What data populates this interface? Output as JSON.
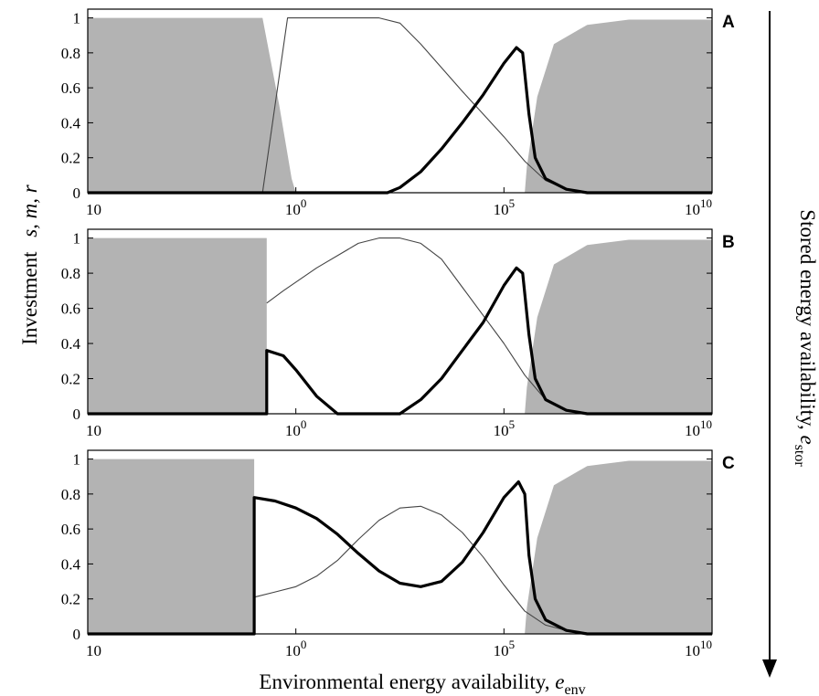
{
  "figure": {
    "ylabel_main": "Investment",
    "ylabel_vars": "s, m, r",
    "xlabel_main": "Environmental energy availability, ",
    "xlabel_var": "e",
    "xlabel_sub": "env",
    "right_label_main": "Stored energy availability, ",
    "right_label_var": "e",
    "right_label_sub": "stor"
  },
  "chart_data": [
    {
      "panel": "A",
      "type": "area",
      "x_scale": "log",
      "x_ticks": [
        "10",
        "10^0",
        "10^5",
        "10^10"
      ],
      "x_tick_values": [
        -5,
        0,
        5,
        10
      ],
      "y_ticks": [
        "0",
        "0.2",
        "0.4",
        "0.6",
        "0.8",
        "1"
      ],
      "ylim": [
        0,
        1.05
      ],
      "colors": {
        "fill": "#b3b3b3",
        "thin": "#444444",
        "thick": "#000000"
      },
      "series": [
        {
          "style": "filled",
          "points": [
            [
              -5,
              1
            ],
            [
              -0.8,
              1
            ],
            [
              -0.4,
              0.5
            ],
            [
              -0.1,
              0.08
            ],
            [
              0,
              0
            ],
            [
              5.5,
              0
            ],
            [
              5.55,
              0.15
            ],
            [
              5.8,
              0.55
            ],
            [
              6.2,
              0.85
            ],
            [
              7,
              0.96
            ],
            [
              8,
              0.99
            ],
            [
              10,
              0.99
            ]
          ]
        },
        {
          "style": "thin",
          "points": [
            [
              -0.8,
              0
            ],
            [
              -0.5,
              0.5
            ],
            [
              -0.2,
              1
            ],
            [
              2,
              1
            ],
            [
              2.5,
              0.97
            ],
            [
              3,
              0.85
            ],
            [
              4,
              0.58
            ],
            [
              4.5,
              0.45
            ],
            [
              5,
              0.32
            ],
            [
              5.5,
              0.18
            ],
            [
              6,
              0.07
            ],
            [
              6.5,
              0.02
            ],
            [
              7,
              0.005
            ],
            [
              10,
              0.005
            ]
          ]
        },
        {
          "style": "thick",
          "points": [
            [
              -5,
              0
            ],
            [
              2.2,
              0
            ],
            [
              2.5,
              0.03
            ],
            [
              3,
              0.12
            ],
            [
              3.5,
              0.25
            ],
            [
              4,
              0.4
            ],
            [
              4.5,
              0.56
            ],
            [
              5,
              0.74
            ],
            [
              5.3,
              0.83
            ],
            [
              5.45,
              0.8
            ],
            [
              5.6,
              0.45
            ],
            [
              5.75,
              0.2
            ],
            [
              6,
              0.08
            ],
            [
              6.5,
              0.02
            ],
            [
              7,
              0
            ],
            [
              10,
              0
            ]
          ]
        }
      ]
    },
    {
      "panel": "B",
      "type": "area",
      "x_scale": "log",
      "x_ticks": [
        "10",
        "10^0",
        "10^5",
        "10^10"
      ],
      "x_tick_values": [
        -5,
        0,
        5,
        10
      ],
      "y_ticks": [
        "0",
        "0.2",
        "0.4",
        "0.6",
        "0.8",
        "1"
      ],
      "ylim": [
        0,
        1.05
      ],
      "colors": {
        "fill": "#b3b3b3",
        "thin": "#444444",
        "thick": "#000000"
      },
      "series": [
        {
          "style": "filled",
          "points": [
            [
              -5,
              1
            ],
            [
              -0.7,
              1
            ],
            [
              -0.7,
              0
            ],
            [
              5.5,
              0
            ],
            [
              5.55,
              0.15
            ],
            [
              5.8,
              0.55
            ],
            [
              6.2,
              0.85
            ],
            [
              7,
              0.96
            ],
            [
              8,
              0.99
            ],
            [
              10,
              0.99
            ]
          ]
        },
        {
          "style": "thin",
          "points": [
            [
              -0.7,
              0.63
            ],
            [
              -0.3,
              0.7
            ],
            [
              0.5,
              0.83
            ],
            [
              1.5,
              0.97
            ],
            [
              2,
              1
            ],
            [
              2.5,
              1
            ],
            [
              3,
              0.97
            ],
            [
              3.5,
              0.88
            ],
            [
              4,
              0.72
            ],
            [
              4.5,
              0.56
            ],
            [
              5,
              0.4
            ],
            [
              5.5,
              0.22
            ],
            [
              6,
              0.08
            ],
            [
              6.5,
              0.02
            ],
            [
              7,
              0.005
            ],
            [
              10,
              0.005
            ]
          ]
        },
        {
          "style": "thick",
          "points": [
            [
              -5,
              0
            ],
            [
              -0.7,
              0
            ],
            [
              -0.7,
              0.36
            ],
            [
              -0.3,
              0.33
            ],
            [
              0,
              0.25
            ],
            [
              0.5,
              0.1
            ],
            [
              1,
              0
            ],
            [
              2.5,
              0
            ],
            [
              3,
              0.08
            ],
            [
              3.5,
              0.2
            ],
            [
              4,
              0.36
            ],
            [
              4.5,
              0.52
            ],
            [
              5,
              0.73
            ],
            [
              5.3,
              0.83
            ],
            [
              5.45,
              0.8
            ],
            [
              5.6,
              0.45
            ],
            [
              5.75,
              0.2
            ],
            [
              6,
              0.08
            ],
            [
              6.5,
              0.02
            ],
            [
              7,
              0
            ],
            [
              10,
              0
            ]
          ]
        }
      ]
    },
    {
      "panel": "C",
      "type": "area",
      "x_scale": "log",
      "x_ticks": [
        "10",
        "10^0",
        "10^5",
        "10^10"
      ],
      "x_tick_values": [
        -5,
        0,
        5,
        10
      ],
      "y_ticks": [
        "0",
        "0.2",
        "0.4",
        "0.6",
        "0.8",
        "1"
      ],
      "ylim": [
        0,
        1.05
      ],
      "colors": {
        "fill": "#b3b3b3",
        "thin": "#444444",
        "thick": "#000000"
      },
      "series": [
        {
          "style": "filled",
          "points": [
            [
              -5,
              1
            ],
            [
              -1,
              1
            ],
            [
              -1,
              0
            ],
            [
              5.5,
              0
            ],
            [
              5.55,
              0.15
            ],
            [
              5.8,
              0.55
            ],
            [
              6.2,
              0.85
            ],
            [
              7,
              0.96
            ],
            [
              8,
              0.99
            ],
            [
              10,
              0.99
            ]
          ]
        },
        {
          "style": "thin",
          "points": [
            [
              -1,
              0.21
            ],
            [
              -0.5,
              0.24
            ],
            [
              0,
              0.27
            ],
            [
              0.5,
              0.33
            ],
            [
              1,
              0.42
            ],
            [
              1.5,
              0.54
            ],
            [
              2,
              0.65
            ],
            [
              2.5,
              0.72
            ],
            [
              3,
              0.73
            ],
            [
              3.5,
              0.68
            ],
            [
              4,
              0.58
            ],
            [
              4.5,
              0.44
            ],
            [
              5,
              0.28
            ],
            [
              5.5,
              0.13
            ],
            [
              6,
              0.05
            ],
            [
              6.5,
              0.02
            ],
            [
              7,
              0.005
            ],
            [
              10,
              0.005
            ]
          ]
        },
        {
          "style": "thick",
          "points": [
            [
              -5,
              0
            ],
            [
              -1,
              0
            ],
            [
              -1,
              0.78
            ],
            [
              -0.5,
              0.76
            ],
            [
              0,
              0.72
            ],
            [
              0.5,
              0.66
            ],
            [
              1,
              0.57
            ],
            [
              1.5,
              0.46
            ],
            [
              2,
              0.36
            ],
            [
              2.5,
              0.29
            ],
            [
              3,
              0.27
            ],
            [
              3.5,
              0.3
            ],
            [
              4,
              0.41
            ],
            [
              4.5,
              0.58
            ],
            [
              5,
              0.78
            ],
            [
              5.35,
              0.87
            ],
            [
              5.5,
              0.8
            ],
            [
              5.6,
              0.45
            ],
            [
              5.75,
              0.2
            ],
            [
              6,
              0.08
            ],
            [
              6.5,
              0.02
            ],
            [
              7,
              0
            ],
            [
              10,
              0
            ]
          ]
        }
      ]
    }
  ]
}
